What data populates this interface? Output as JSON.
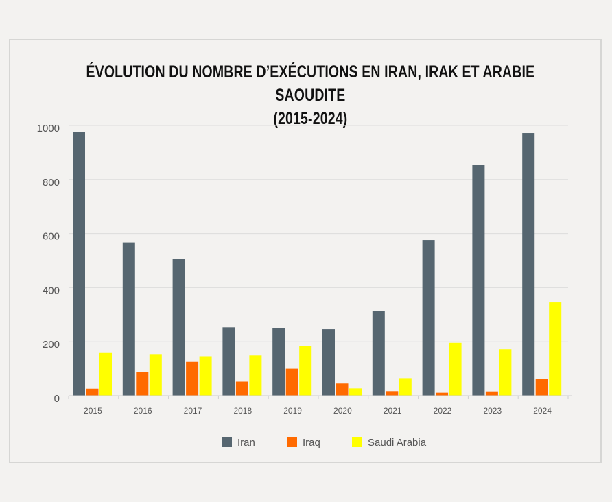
{
  "title": {
    "line1": "ÉVOLUTION DU NOMBRE D’EXÉCUTIONS EN IRAN, IRAK ET ARABIE SAOUDITE",
    "line2": "(2015-2024)"
  },
  "colors": {
    "Iran": "#566670",
    "Iraq": "#ff6a00",
    "Saudi Arabia": "#ffff00",
    "grid": "#dcdcdc",
    "axis_text": "#555555"
  },
  "chart_data": {
    "type": "bar",
    "title": "ÉVOLUTION DU NOMBRE D’EXÉCUTIONS EN IRAN, IRAK ET ARABIE SAOUDITE (2015-2024)",
    "xlabel": "",
    "ylabel": "",
    "ylim": [
      0,
      1000
    ],
    "yticks": [
      0,
      200,
      400,
      600,
      800,
      1000
    ],
    "grid": true,
    "legend_position": "bottom",
    "categories": [
      "2015",
      "2016",
      "2017",
      "2018",
      "2019",
      "2020",
      "2021",
      "2022",
      "2023",
      "2024"
    ],
    "series": [
      {
        "name": "Iran",
        "values": [
          977,
          567,
          507,
          253,
          251,
          246,
          314,
          576,
          853,
          972
        ]
      },
      {
        "name": "Iraq",
        "values": [
          26,
          88,
          125,
          52,
          100,
          45,
          17,
          11,
          16,
          63
        ]
      },
      {
        "name": "Saudi Arabia",
        "values": [
          158,
          154,
          146,
          149,
          184,
          27,
          65,
          196,
          172,
          345
        ]
      }
    ]
  }
}
